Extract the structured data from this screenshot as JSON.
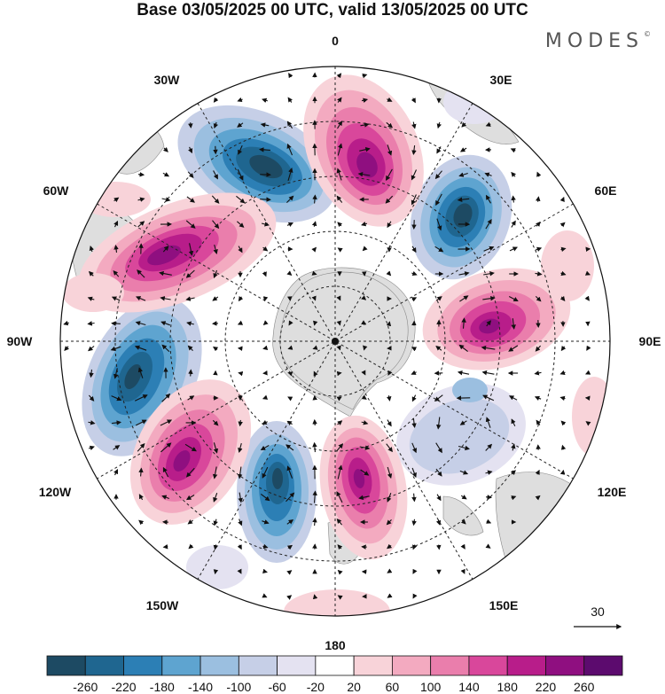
{
  "title": "Base 03/05/2025 00 UTC, valid 13/05/2025 00 UTC",
  "logo": "MODES",
  "logo_mark": "©",
  "meridian_labels": {
    "lon_0": "0",
    "lon_30e": "30E",
    "lon_60e": "60E",
    "lon_90e": "90E",
    "lon_120e": "120E",
    "lon_150e": "150E",
    "lon_180": "180",
    "lon_150w": "150W",
    "lon_120w": "120W",
    "lon_90w": "90W",
    "lon_60w": "60W",
    "lon_30w": "30W"
  },
  "vector_reference": "30",
  "colorbar": {
    "labels": [
      "-260",
      "-220",
      "-180",
      "-140",
      "-100",
      "-60",
      "-20",
      "20",
      "60",
      "100",
      "140",
      "180",
      "220",
      "260"
    ],
    "colors": [
      "#1d4a63",
      "#1f6690",
      "#2c7fb5",
      "#5ea4d0",
      "#9bbfe0",
      "#c6cfe7",
      "#e4e2f1",
      "#ffffff",
      "#f8d3d9",
      "#f3aac0",
      "#ea7eac",
      "#d9479b",
      "#b81d8a",
      "#8f0f80",
      "#5c0b6e"
    ]
  },
  "anomaly_centers": [
    {
      "id": "neg-30w",
      "sign": "negative",
      "max_abs": 260
    },
    {
      "id": "pos-0",
      "sign": "positive",
      "max_abs": 220
    },
    {
      "id": "neg-40e",
      "sign": "negative",
      "max_abs": 260
    },
    {
      "id": "pos-60w",
      "sign": "positive",
      "max_abs": 220
    },
    {
      "id": "pos-90e",
      "sign": "positive",
      "max_abs": 220
    },
    {
      "id": "neg-100w",
      "sign": "negative",
      "max_abs": 220
    },
    {
      "id": "pos-140w",
      "sign": "positive",
      "max_abs": 220
    },
    {
      "id": "neg-165w",
      "sign": "negative",
      "max_abs": 220
    },
    {
      "id": "pos-170e",
      "sign": "positive",
      "max_abs": 220
    },
    {
      "id": "neg-130e",
      "sign": "negative",
      "max_abs": 100
    }
  ]
}
